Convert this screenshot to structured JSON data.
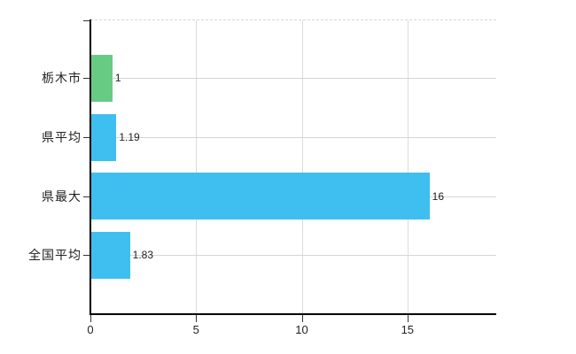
{
  "chart_data": {
    "type": "bar",
    "orientation": "horizontal",
    "title": "",
    "xlabel": "",
    "ylabel": "",
    "categories": [
      "栃木市",
      "県平均",
      "県最大",
      "全国平均"
    ],
    "values": [
      1,
      1.19,
      16,
      1.83
    ],
    "value_labels": [
      "1",
      "1.19",
      "16",
      "1.83"
    ],
    "bar_colors": [
      "#68cb84",
      "#3fbff0",
      "#3fbff0",
      "#3fbff0"
    ],
    "xlim": [
      0,
      19.2
    ],
    "x_ticks": [
      0,
      5,
      10,
      15
    ],
    "x_tick_labels": [
      "0",
      "5",
      "10",
      "15"
    ],
    "grid": "on",
    "legend": "none",
    "colors": {
      "accent_green": "#68cb84",
      "accent_blue": "#3fbff0",
      "axis": "#000000",
      "vertical_grid": "#dcdcdc",
      "horizontal_grid": "#cedacd",
      "text": "#222222"
    }
  },
  "layout_note": "plain horizontal bar chart on white background, no title or legend"
}
